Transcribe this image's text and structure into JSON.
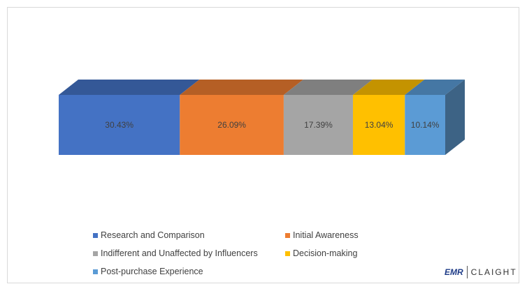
{
  "chart_data": {
    "type": "bar",
    "subtype": "100% stacked 3D horizontal bar",
    "title": "",
    "categories": [
      "Research and Comparison",
      "Initial Awareness",
      "Indifferent and Unaffected by Influencers",
      "Decision-making",
      "Post-purchase Experience"
    ],
    "values": [
      30.43,
      26.09,
      17.39,
      13.04,
      10.14
    ],
    "data_labels": [
      "30.43%",
      "26.09%",
      "17.39%",
      "13.04%",
      "10.14%"
    ],
    "colors": [
      "#4472c4",
      "#ed7d31",
      "#a5a5a5",
      "#ffc000",
      "#5b9bd5"
    ],
    "top_colors": [
      "#345897",
      "#b55f25",
      "#7f7f7f",
      "#c49300",
      "#4577a4"
    ],
    "side_color": "#3d6385",
    "legend_position": "bottom",
    "grid": false
  },
  "logo": {
    "left": "EMR",
    "right": "CLAIGHT"
  }
}
